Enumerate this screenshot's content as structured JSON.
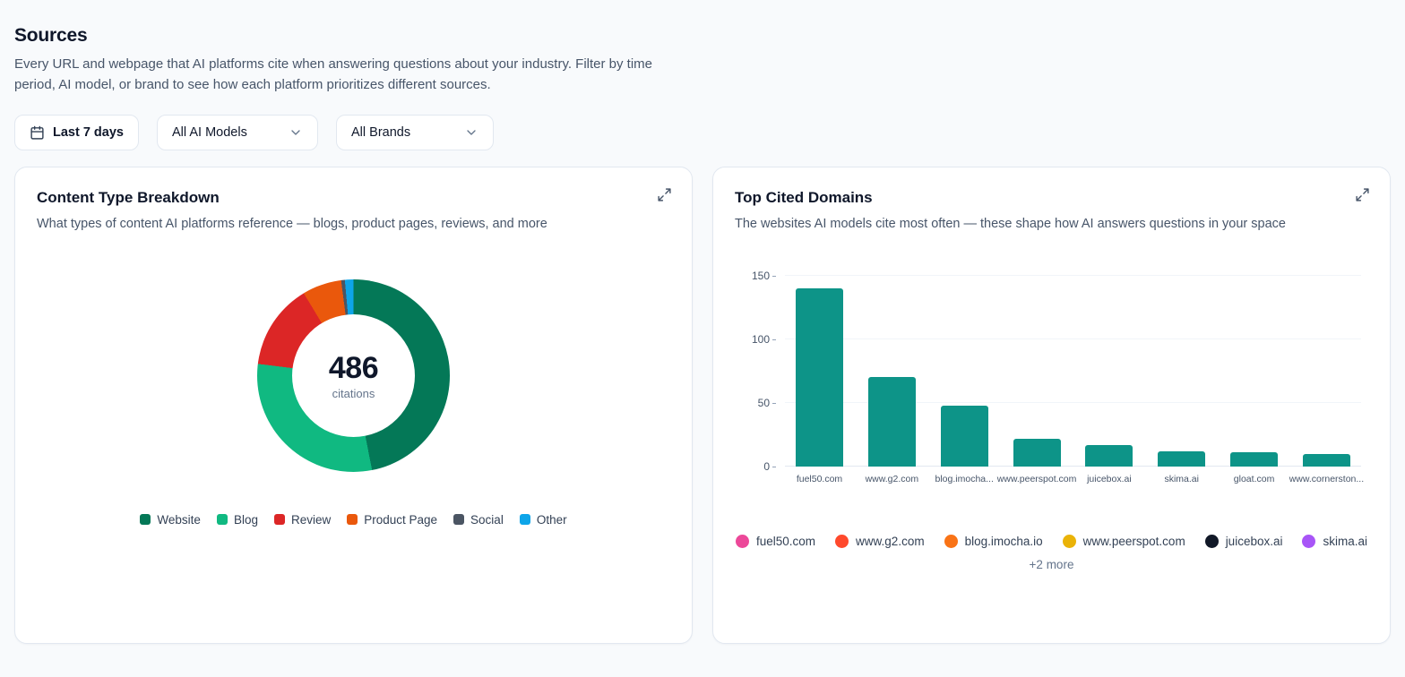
{
  "page": {
    "title": "Sources",
    "description": "Every URL and webpage that AI platforms cite when answering questions about your industry. Filter by time period, AI model, or brand to see how each platform prioritizes different sources."
  },
  "filters": {
    "date_range": "Last 7 days",
    "model_select": "All AI Models",
    "brand_select": "All Brands"
  },
  "content_type_card": {
    "title": "Content Type Breakdown",
    "subtitle": "What types of content AI platforms reference — blogs, product pages, reviews, and more",
    "center_value": "486",
    "center_label": "citations"
  },
  "top_domains_card": {
    "title": "Top Cited Domains",
    "subtitle": "The websites AI models cite most often — these shape how AI answers questions in your space",
    "more_label": "+2 more"
  },
  "chart_data": [
    {
      "type": "pie",
      "title": "Content Type Breakdown",
      "total": 486,
      "center_label": "citations",
      "segments": [
        {
          "label": "Website",
          "value": 228,
          "color": "#047857"
        },
        {
          "label": "Blog",
          "value": 146,
          "color": "#10b981"
        },
        {
          "label": "Review",
          "value": 70,
          "color": "#dc2626"
        },
        {
          "label": "Product Page",
          "value": 32,
          "color": "#ea580c"
        },
        {
          "label": "Social",
          "value": 3,
          "color": "#4b5563"
        },
        {
          "label": "Other",
          "value": 7,
          "color": "#0ea5e9"
        }
      ]
    },
    {
      "type": "bar",
      "title": "Top Cited Domains",
      "categories": [
        "fuel50.com",
        "www.g2.com",
        "blog.imocha...",
        "www.peerspot.com",
        "juicebox.ai",
        "skima.ai",
        "gloat.com",
        "www.cornerston..."
      ],
      "values": [
        140,
        70,
        48,
        22,
        17,
        12,
        11,
        10
      ],
      "bar_color": "#0d9488",
      "ylim": [
        0,
        150
      ],
      "yticks": [
        0,
        50,
        100,
        150
      ],
      "grid": true,
      "legend_position": "bottom"
    }
  ],
  "domain_legend": [
    {
      "label": "fuel50.com",
      "color": "#ec4899"
    },
    {
      "label": "www.g2.com",
      "color": "#ff492c"
    },
    {
      "label": "blog.imocha.io",
      "color": "#f97316"
    },
    {
      "label": "www.peerspot.com",
      "color": "#eab308"
    },
    {
      "label": "juicebox.ai",
      "color": "#111827"
    },
    {
      "label": "skima.ai",
      "color": "#a855f7"
    }
  ]
}
